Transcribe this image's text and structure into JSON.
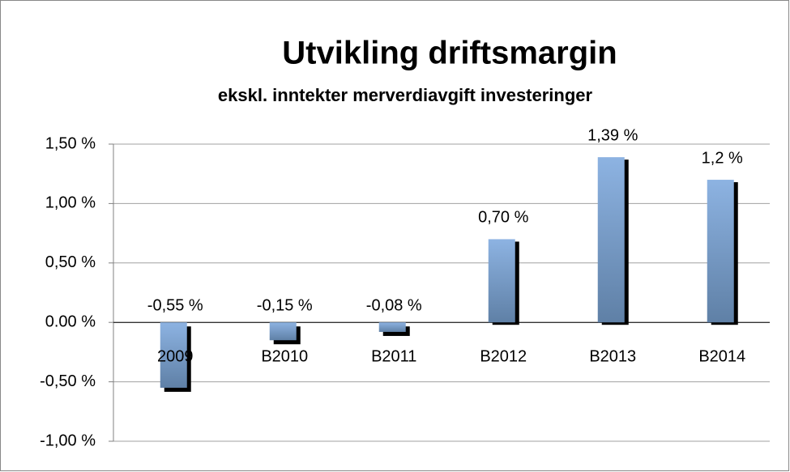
{
  "chart_data": {
    "type": "bar",
    "title": "Utvikling driftsmargin",
    "subtitle": "ekskl. inntekter merverdiavgift investeringer",
    "categories": [
      "2009",
      "B2010",
      "B2011",
      "B2012",
      "B2013",
      "B2014"
    ],
    "values": [
      -0.55,
      -0.15,
      -0.08,
      0.7,
      1.39,
      1.2
    ],
    "value_labels": [
      "-0,55 %",
      "-0,15 %",
      "-0,08 %",
      "0,70 %",
      "1,39 %",
      "1,2 %"
    ],
    "color": "#8db3e2",
    "ylim": [
      -1.0,
      1.5
    ],
    "yticks": [
      {
        "value": -1.0,
        "label": "-1,00 %"
      },
      {
        "value": -0.5,
        "label": "-0,50 %"
      },
      {
        "value": 0,
        "label": "0.00 %"
      },
      {
        "value": 0.5,
        "label": "0,50 %"
      },
      {
        "value": 1.0,
        "label": "1,00 %"
      },
      {
        "value": 1.5,
        "label": "1,50 %"
      }
    ],
    "grid": true
  }
}
